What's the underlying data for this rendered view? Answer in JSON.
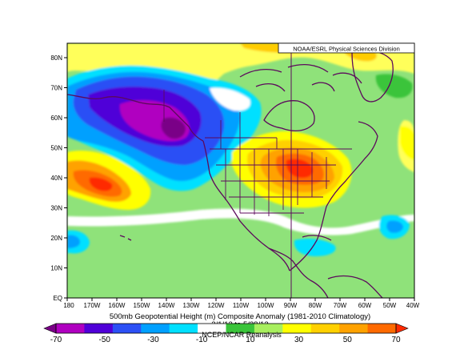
{
  "credit": "NOAA/ESRL Physical Sciences Division",
  "title_line1": "500mb Geopotential Height (m) Composite Anomaly (1981-2010 Climatology)",
  "title_line2": "3/1/12 to 5/28/12",
  "source_line": "NCEP/NCAR Reanalysis",
  "lat_labels": [
    "EQ",
    "10N",
    "20N",
    "30N",
    "40N",
    "50N",
    "60N",
    "70N",
    "80N"
  ],
  "lon_labels": [
    "180",
    "170W",
    "160W",
    "150W",
    "140W",
    "130W",
    "120W",
    "110W",
    "100W",
    "90W",
    "80W",
    "70W",
    "60W",
    "50W",
    "40W"
  ],
  "colorbar": {
    "tick_labels": [
      "-70",
      "-50",
      "-30",
      "-10",
      "10",
      "30",
      "50",
      "70"
    ],
    "colors": [
      "#7a0087",
      "#b000c0",
      "#5000d8",
      "#2c50f5",
      "#00a0ff",
      "#00e0ff",
      "#ffffff",
      "#3ac43a",
      "#a8ef5e",
      "#ffff00",
      "#ffd000",
      "#ffa200",
      "#ff6a00",
      "#ff2a00"
    ]
  },
  "colors": {
    "background_anomaly": "#8fe27a",
    "coastline": "#5c0a5c",
    "frame": "#000000"
  }
}
